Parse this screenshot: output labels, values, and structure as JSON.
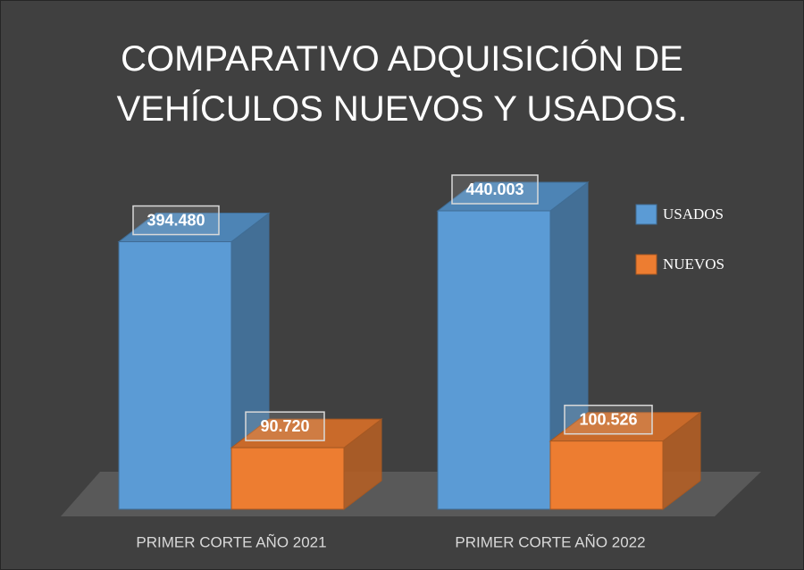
{
  "chart_data": {
    "type": "bar3d",
    "title": "COMPARATIVO ADQUISICIÓN DE VEHÍCULOS NUEVOS Y USADOS.",
    "categories": [
      "PRIMER CORTE AÑO 2021",
      "PRIMER CORTE AÑO 2022"
    ],
    "series": [
      {
        "name": "USADOS",
        "color": "#5b9bd5",
        "values": [
          394480,
          440003
        ],
        "value_labels": [
          "394.480",
          "440.003"
        ]
      },
      {
        "name": "NUEVOS",
        "color": "#ed7d31",
        "values": [
          90720,
          100526
        ],
        "value_labels": [
          "90.720",
          "100.526"
        ]
      }
    ],
    "legend": "right"
  }
}
